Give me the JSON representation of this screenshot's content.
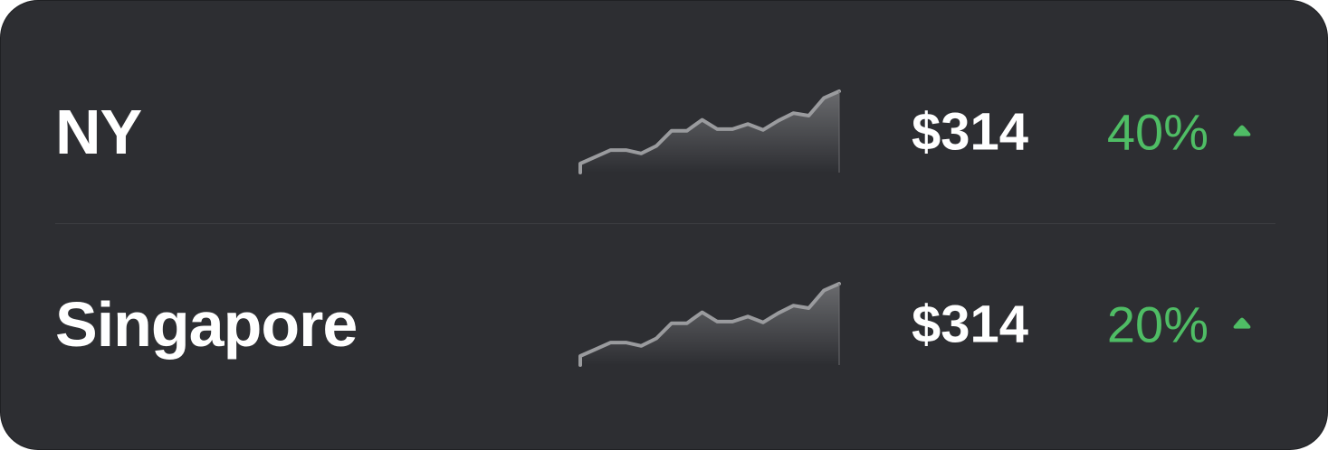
{
  "rows": [
    {
      "name": "NY",
      "price": "$314",
      "change": "40%",
      "trend": "up",
      "spark": [
        14,
        22,
        30,
        30,
        26,
        35,
        53,
        53,
        66,
        55,
        55,
        61,
        54,
        65,
        74,
        71,
        92,
        100
      ]
    },
    {
      "name": "Singapore",
      "price": "$314",
      "change": "20%",
      "trend": "up",
      "spark": [
        14,
        22,
        30,
        30,
        26,
        35,
        53,
        53,
        66,
        55,
        55,
        61,
        54,
        65,
        74,
        71,
        92,
        100
      ]
    }
  ],
  "colors": {
    "card_bg": "#2d2e32",
    "text": "#ffffff",
    "positive": "#4fbd65",
    "spark_line": "#9a9b9e",
    "spark_fill": "#6a6b6e"
  },
  "icons": {
    "trend_up": "triangle-up-icon"
  }
}
